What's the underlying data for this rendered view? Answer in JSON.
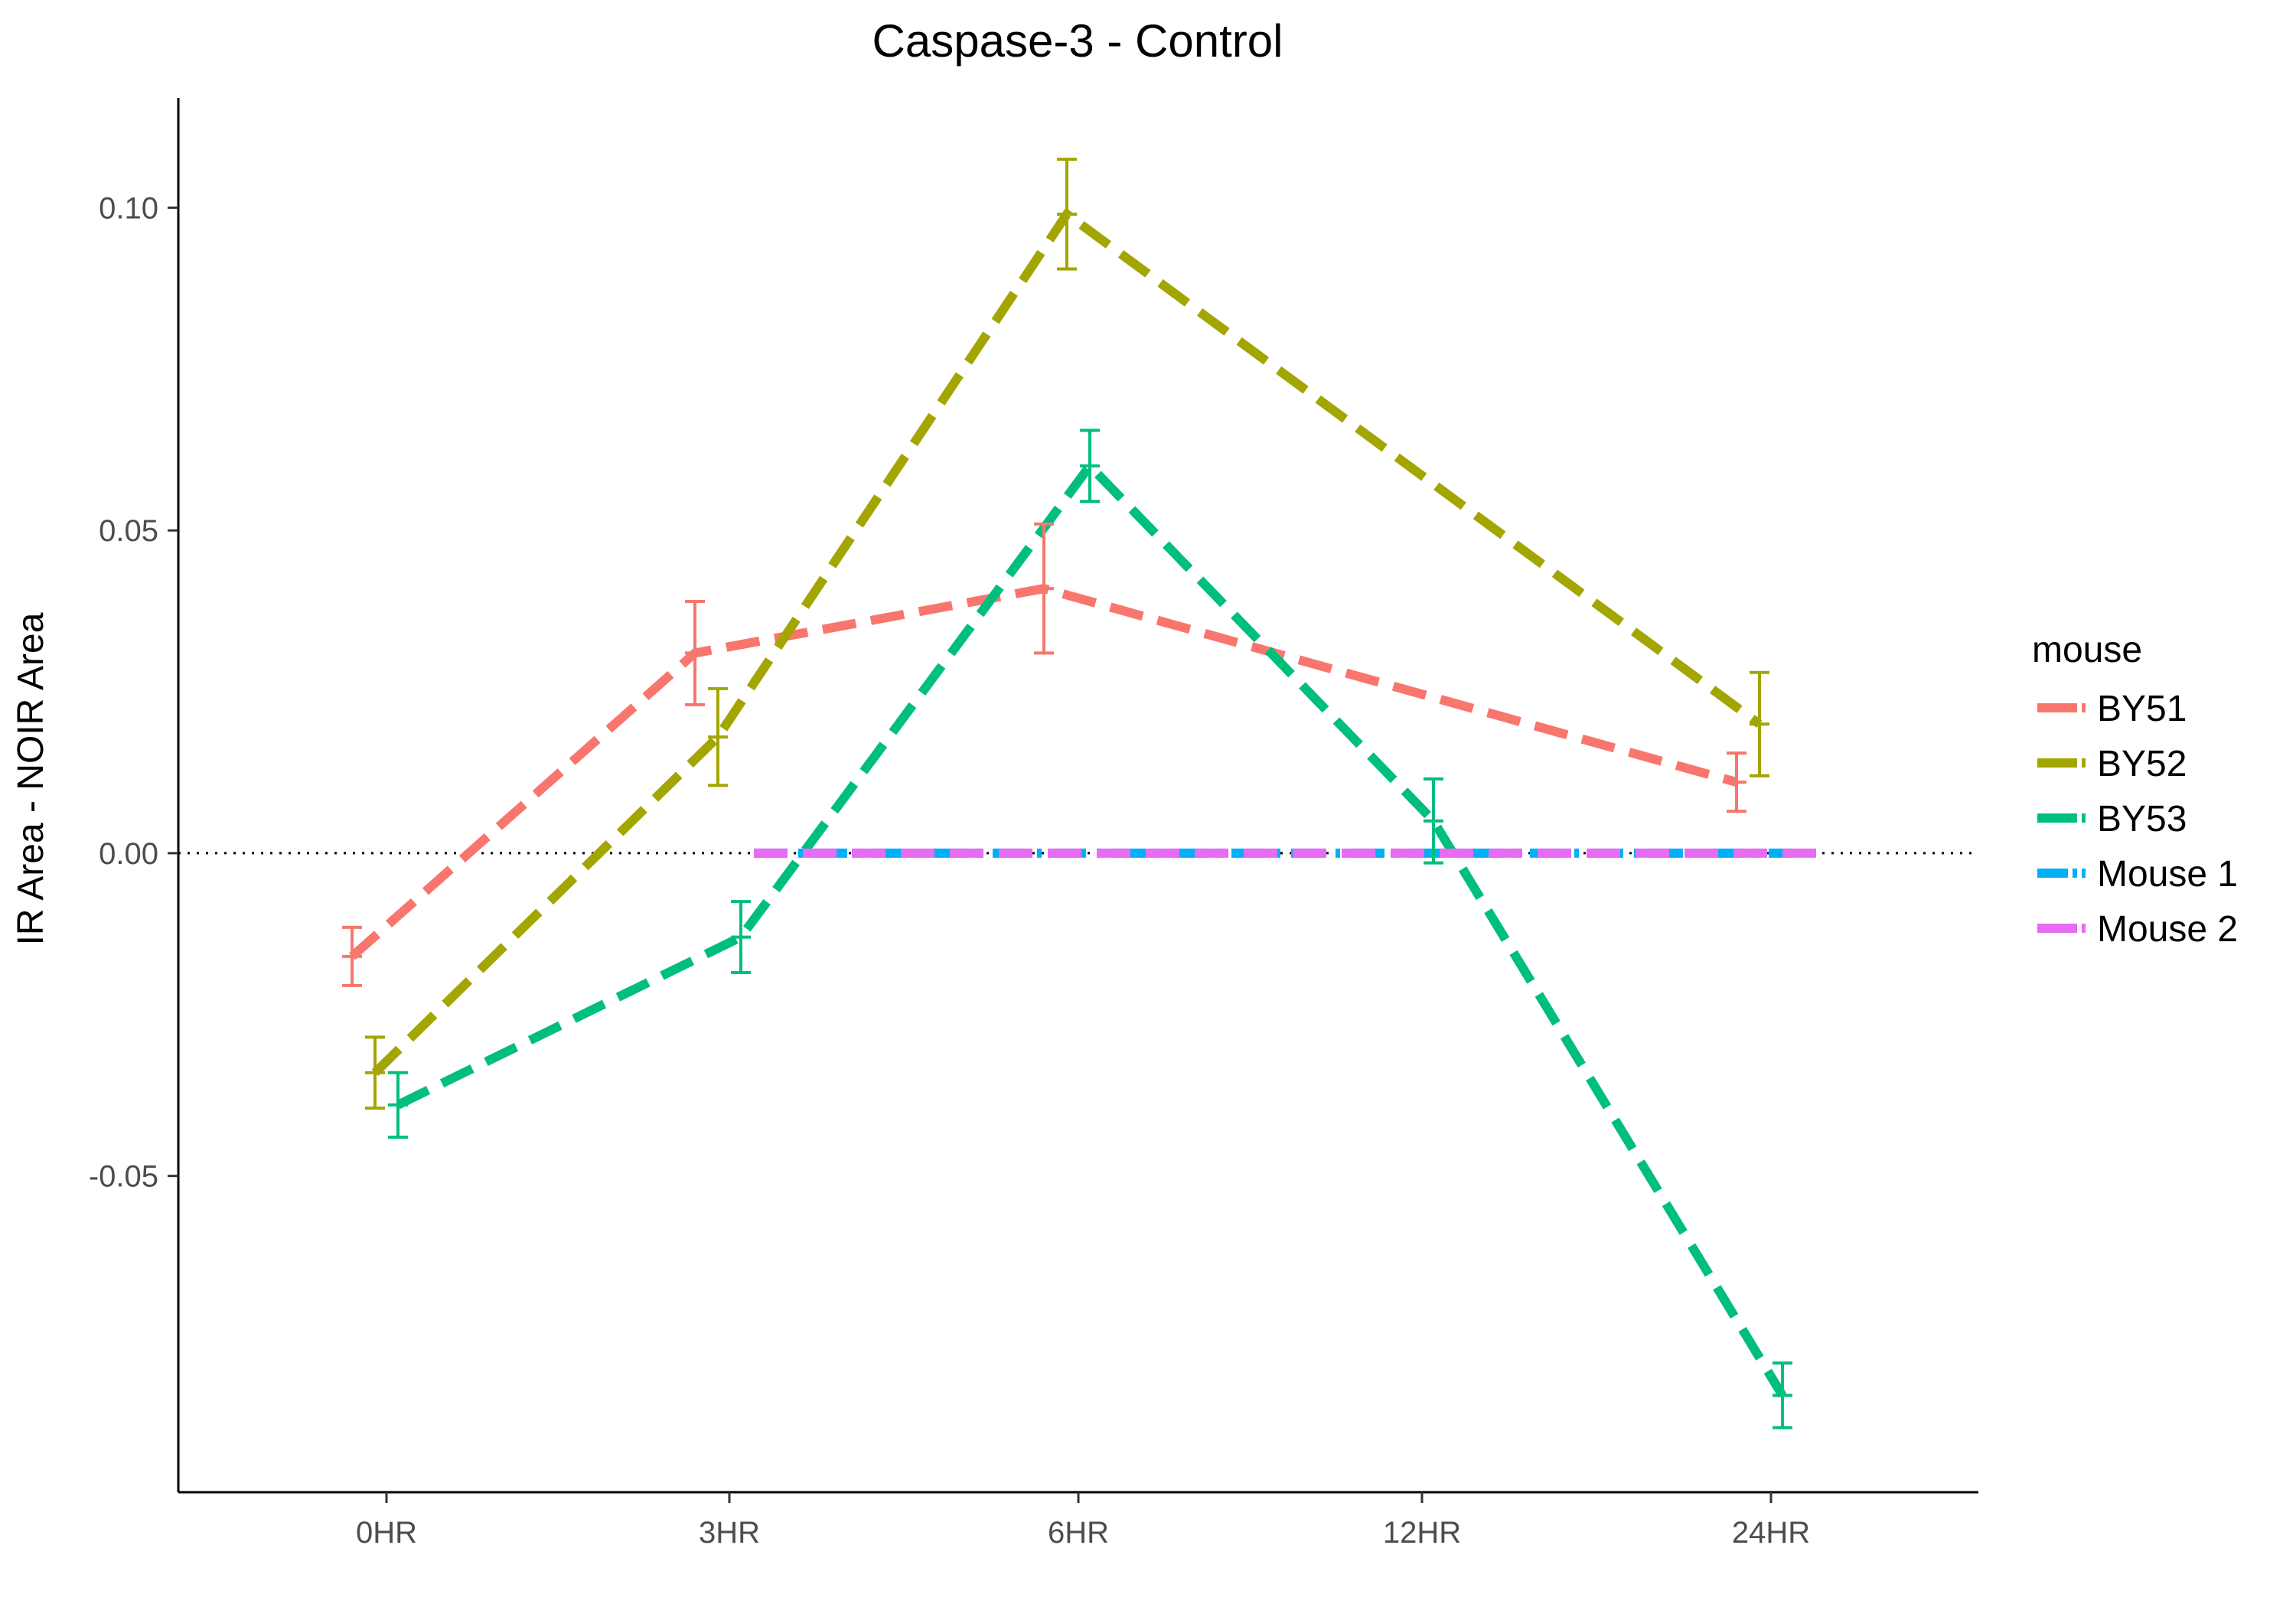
{
  "chart_data": {
    "type": "line",
    "title": "Caspase-3 - Control",
    "xlabel": "",
    "ylabel": "IR Area - NOIR Area",
    "categories": [
      "0HR",
      "3HR",
      "6HR",
      "12HR",
      "24HR"
    ],
    "ylim": [
      -0.099,
      0.117
    ],
    "yticks": [
      -0.05,
      0.0,
      0.05,
      0.1
    ],
    "ytick_labels": [
      "-0.05",
      "0.00",
      "0.05",
      "0.10"
    ],
    "reference_line": {
      "y": 0,
      "style": "dotted",
      "color": "#000000"
    },
    "grid": false,
    "legend": {
      "title": "mouse",
      "position": "right"
    },
    "series": [
      {
        "name": "BY51",
        "color": "#F8766D",
        "style": "dashed",
        "values": [
          -0.016,
          0.031,
          0.041,
          null,
          0.011
        ],
        "errors": [
          0.0045,
          0.008,
          0.01,
          null,
          0.0045
        ]
      },
      {
        "name": "BY52",
        "color": "#A3A500",
        "style": "dashed",
        "values": [
          -0.034,
          0.018,
          0.099,
          null,
          0.02
        ],
        "errors": [
          0.0055,
          0.0075,
          0.0085,
          null,
          0.008
        ]
      },
      {
        "name": "BY53",
        "color": "#00BF7D",
        "style": "dashed",
        "values": [
          -0.039,
          -0.013,
          0.06,
          0.005,
          -0.084
        ],
        "errors": [
          0.005,
          0.0055,
          0.0055,
          0.0065,
          0.005
        ]
      },
      {
        "name": "Mouse 1",
        "color": "#00B0F6",
        "style": "dashdot",
        "values": [
          null,
          0,
          0,
          0,
          0
        ],
        "errors": [
          null,
          null,
          null,
          null,
          null
        ]
      },
      {
        "name": "Mouse 2",
        "color": "#E76BF3",
        "style": "dashed",
        "values": [
          null,
          0,
          0,
          0,
          0
        ],
        "errors": [
          null,
          null,
          null,
          null,
          null
        ]
      }
    ]
  }
}
